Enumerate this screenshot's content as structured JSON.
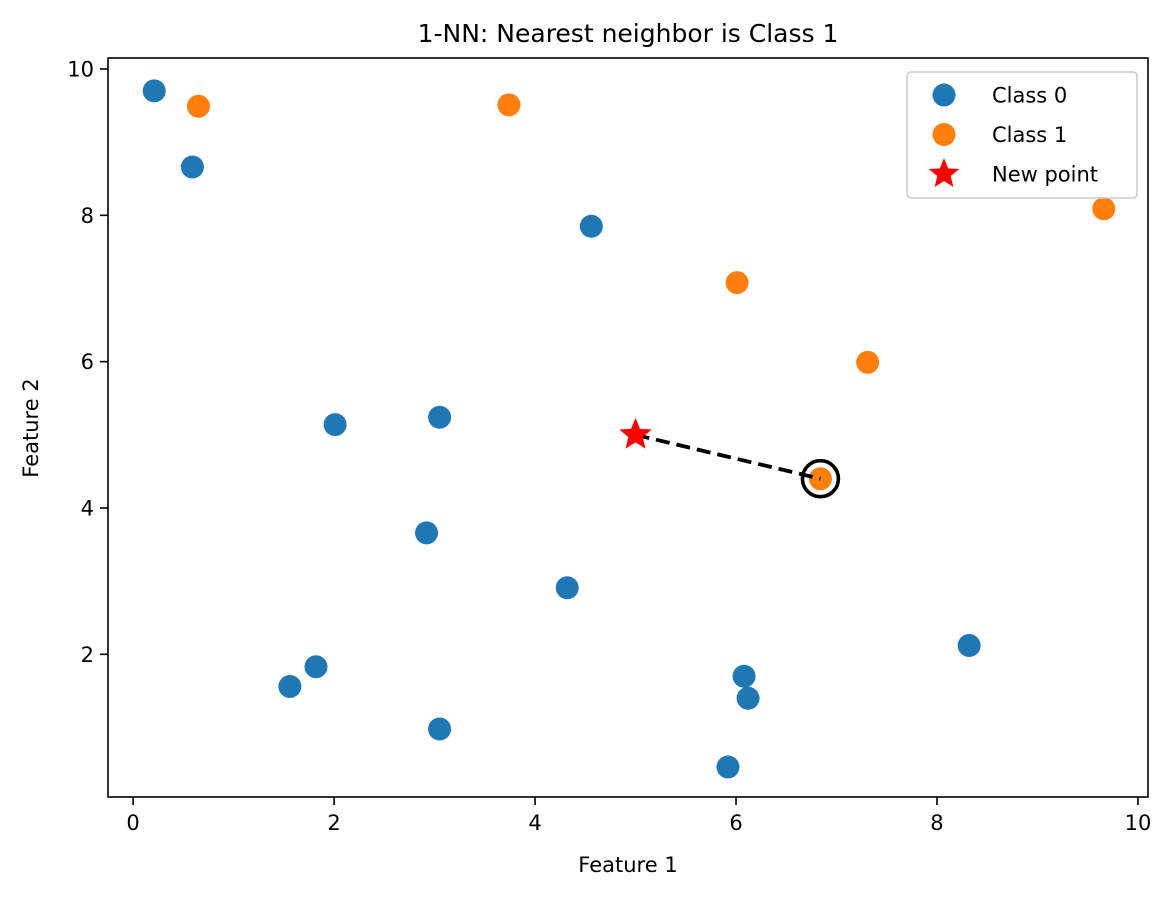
{
  "chart_data": {
    "type": "scatter",
    "title": "1-NN: Nearest neighbor is Class 1",
    "xlabel": "Feature 1",
    "ylabel": "Feature 2",
    "xlim": [
      -0.25,
      10.1
    ],
    "ylim": [
      0.05,
      10.15
    ],
    "xticks": [
      0,
      2,
      4,
      6,
      8,
      10
    ],
    "yticks": [
      2,
      4,
      6,
      8,
      10
    ],
    "grid": false,
    "legend_position": "top-right",
    "series": [
      {
        "name": "Class 0",
        "color": "#1f77b4",
        "marker": "circle",
        "points": [
          {
            "x": 0.21,
            "y": 9.7
          },
          {
            "x": 0.59,
            "y": 8.66
          },
          {
            "x": 4.56,
            "y": 7.85
          },
          {
            "x": 2.01,
            "y": 5.14
          },
          {
            "x": 3.05,
            "y": 5.24
          },
          {
            "x": 2.92,
            "y": 3.66
          },
          {
            "x": 4.32,
            "y": 2.91
          },
          {
            "x": 8.32,
            "y": 2.12
          },
          {
            "x": 1.82,
            "y": 1.83
          },
          {
            "x": 1.56,
            "y": 1.56
          },
          {
            "x": 6.08,
            "y": 1.7
          },
          {
            "x": 6.12,
            "y": 1.4
          },
          {
            "x": 3.05,
            "y": 0.98
          },
          {
            "x": 5.92,
            "y": 0.46
          }
        ]
      },
      {
        "name": "Class 1",
        "color": "#ff7f0e",
        "marker": "circle",
        "points": [
          {
            "x": 0.65,
            "y": 9.49
          },
          {
            "x": 3.74,
            "y": 9.51
          },
          {
            "x": 9.66,
            "y": 8.09
          },
          {
            "x": 6.01,
            "y": 7.08
          },
          {
            "x": 7.31,
            "y": 5.99
          },
          {
            "x": 6.84,
            "y": 4.4
          }
        ]
      },
      {
        "name": "New point",
        "color": "#ff0000",
        "marker": "star",
        "points": [
          {
            "x": 5.0,
            "y": 5.0
          }
        ]
      }
    ],
    "nearest_neighbor_line": {
      "from": {
        "x": 5.0,
        "y": 5.0
      },
      "to": {
        "x": 6.84,
        "y": 4.4
      },
      "color": "#000000",
      "style": "dashed"
    },
    "highlight_ring": {
      "x": 6.84,
      "y": 4.4,
      "color": "#000000"
    }
  }
}
